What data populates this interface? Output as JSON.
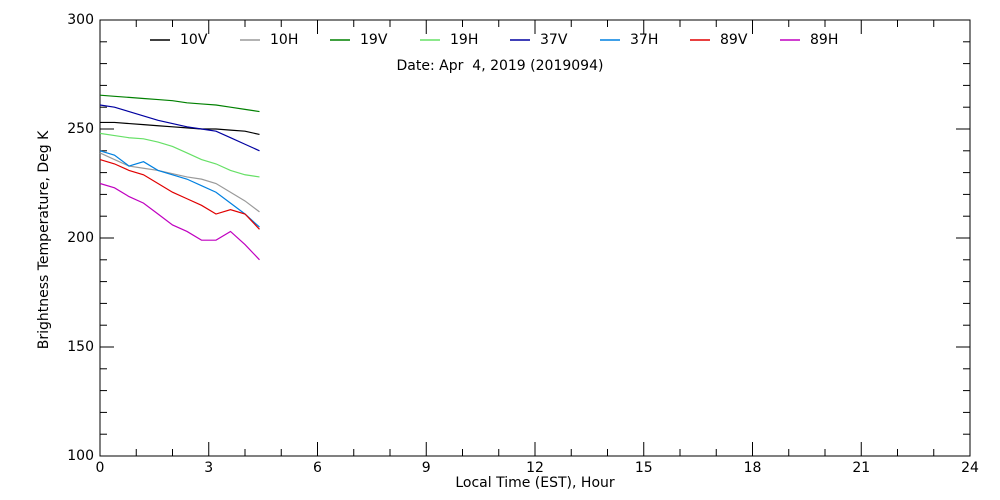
{
  "chart_data": {
    "type": "line",
    "subtitle": "Date: Apr  4, 2019 (2019094)",
    "xlabel": "Local Time (EST), Hour",
    "ylabel": "Brightness Temperature, Deg K",
    "x": [
      0,
      0.4,
      0.8,
      1.2,
      1.6,
      2.0,
      2.4,
      2.8,
      3.2,
      3.6,
      4.0,
      4.4
    ],
    "series": [
      {
        "name": "10V",
        "color": "#000000",
        "values": [
          253,
          253,
          252.5,
          252,
          251.5,
          251,
          250.5,
          250,
          250,
          249.5,
          249,
          247.5
        ]
      },
      {
        "name": "10H",
        "color": "#9a9a9a",
        "values": [
          239,
          236,
          233,
          232,
          231,
          229.5,
          228,
          227,
          225,
          221,
          217,
          212
        ]
      },
      {
        "name": "19V",
        "color": "#008000",
        "values": [
          265.5,
          265,
          264.5,
          264,
          263.5,
          263,
          262,
          261.5,
          261,
          260,
          259,
          258
        ]
      },
      {
        "name": "19H",
        "color": "#66e066",
        "values": [
          248,
          247,
          246,
          245.5,
          244,
          242,
          239,
          236,
          234,
          231,
          229,
          228
        ]
      },
      {
        "name": "37V",
        "color": "#0000a0",
        "values": [
          261,
          260,
          258,
          256,
          254,
          252.5,
          251,
          250,
          249,
          246,
          243,
          240
        ]
      },
      {
        "name": "37H",
        "color": "#0080e0",
        "values": [
          240,
          238,
          233,
          235,
          231,
          229,
          227,
          224,
          221,
          216,
          211,
          205
        ]
      },
      {
        "name": "89V",
        "color": "#e00000",
        "values": [
          236,
          234,
          231,
          229,
          225,
          221,
          218,
          215,
          211,
          213,
          211,
          204
        ]
      },
      {
        "name": "89H",
        "color": "#c000c0",
        "values": [
          225,
          223,
          219,
          216,
          211,
          206,
          203,
          199,
          199,
          203,
          197,
          190
        ]
      }
    ],
    "xlim": [
      0,
      24
    ],
    "xticks": [
      0,
      3,
      6,
      9,
      12,
      15,
      18,
      21,
      24
    ],
    "xminorticks": [
      1,
      2,
      4,
      5,
      7,
      8,
      10,
      11,
      13,
      14,
      16,
      17,
      19,
      20,
      22,
      23
    ],
    "ylim": [
      100,
      300
    ],
    "yticks": [
      100,
      150,
      200,
      250,
      300
    ],
    "yminorticks": [
      110,
      120,
      130,
      140,
      160,
      170,
      180,
      190,
      210,
      220,
      230,
      240,
      260,
      270,
      280,
      290
    ],
    "grid": false,
    "legend": "top"
  }
}
